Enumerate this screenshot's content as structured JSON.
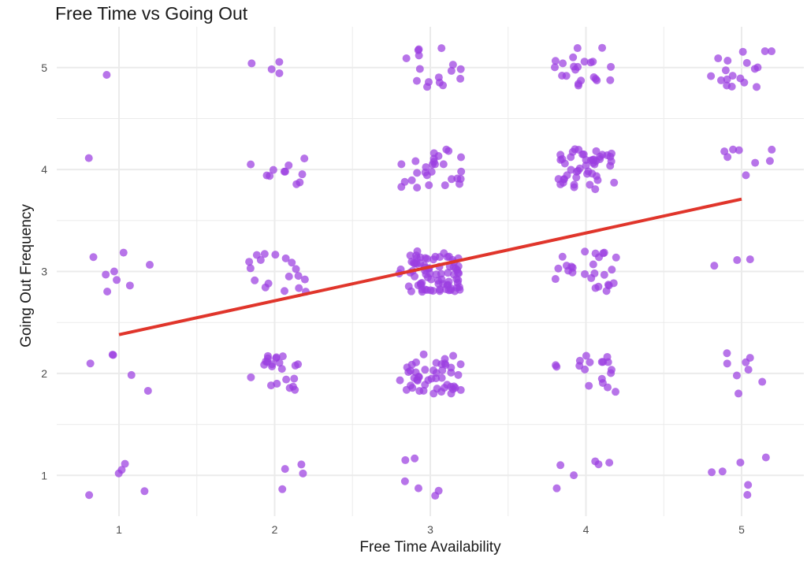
{
  "chart_data": {
    "type": "scatter",
    "title": "Free Time vs Going Out",
    "xlabel": "Free Time Availability",
    "ylabel": "Going Out Frequency",
    "xlim": [
      0.6,
      5.4
    ],
    "ylim": [
      0.6,
      5.4
    ],
    "x_ticks": [
      "1",
      "2",
      "3",
      "4",
      "5"
    ],
    "y_ticks": [
      "1",
      "2",
      "3",
      "4",
      "5"
    ],
    "grid": true,
    "legend": "none",
    "colors": {
      "points": "#9b3fe0",
      "trend": "#e0352b",
      "grid": "#ebebeb"
    },
    "point_counts": [
      [
        1,
        1,
        5
      ],
      [
        1,
        2,
        5
      ],
      [
        1,
        3,
        8
      ],
      [
        1,
        4,
        1
      ],
      [
        1,
        5,
        1
      ],
      [
        2,
        1,
        4
      ],
      [
        2,
        2,
        22
      ],
      [
        2,
        3,
        18
      ],
      [
        2,
        4,
        11
      ],
      [
        2,
        5,
        4
      ],
      [
        3,
        1,
        6
      ],
      [
        3,
        2,
        48
      ],
      [
        3,
        3,
        80
      ],
      [
        3,
        4,
        28
      ],
      [
        3,
        5,
        16
      ],
      [
        4,
        1,
        6
      ],
      [
        4,
        2,
        18
      ],
      [
        4,
        3,
        26
      ],
      [
        4,
        4,
        48
      ],
      [
        4,
        5,
        22
      ],
      [
        5,
        1,
        6
      ],
      [
        5,
        2,
        8
      ],
      [
        5,
        3,
        3
      ],
      [
        5,
        4,
        8
      ],
      [
        5,
        5,
        18
      ]
    ],
    "jitter": 0.2,
    "trend_line": {
      "x": [
        1,
        5
      ],
      "y": [
        2.38,
        3.71
      ]
    }
  }
}
